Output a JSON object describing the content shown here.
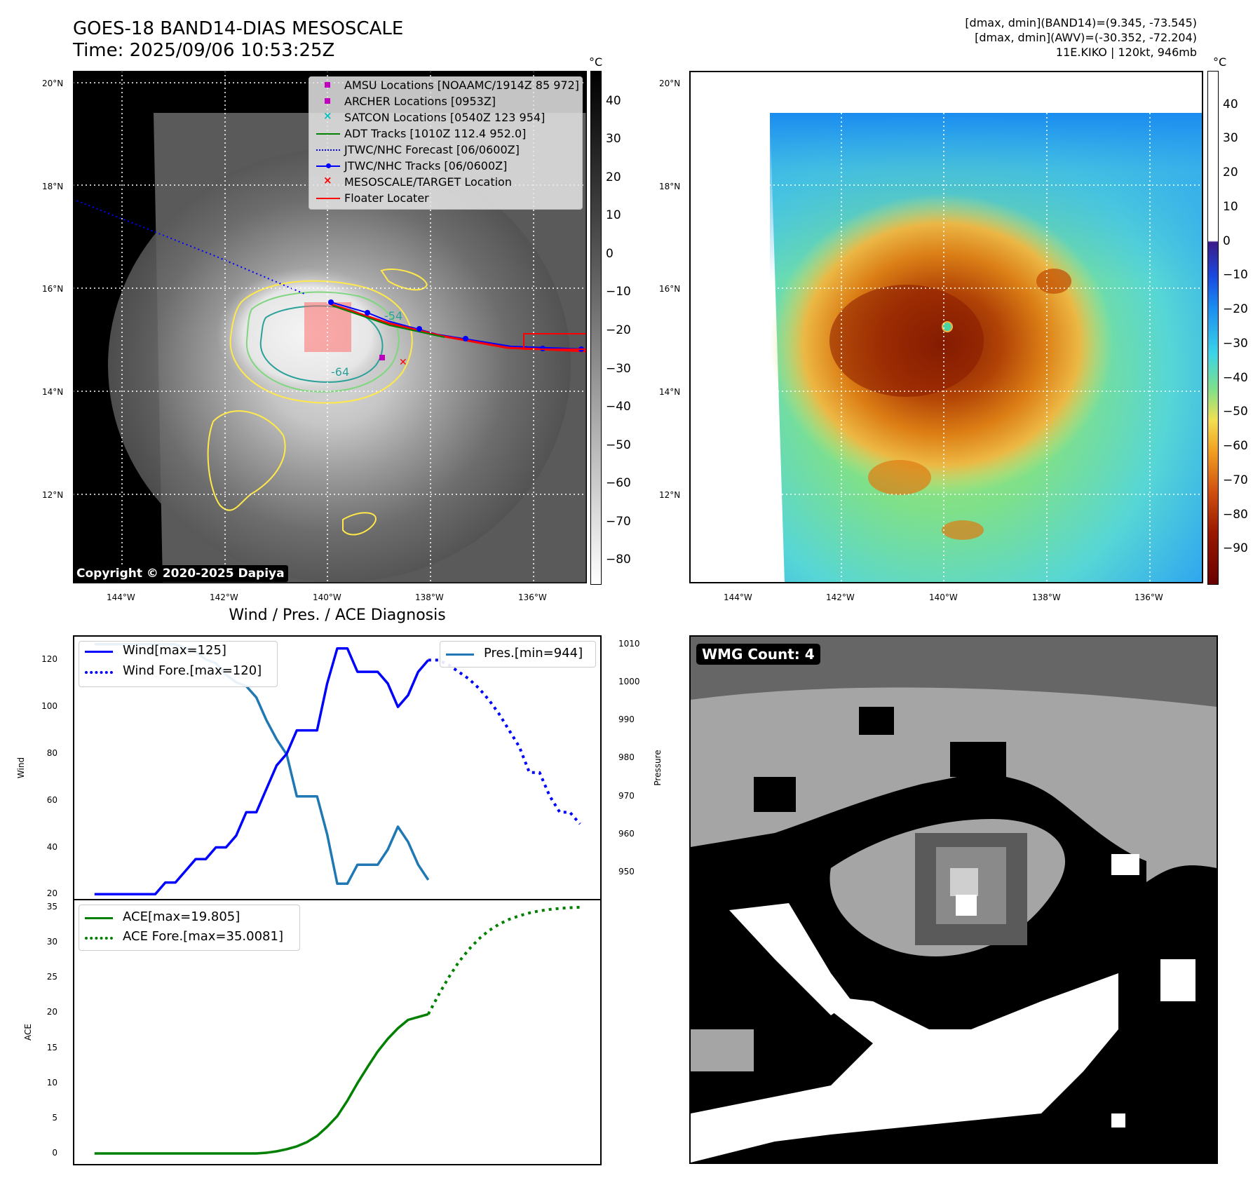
{
  "header": {
    "title_line1": "GOES-18 BAND14-DIAS MESOSCALE",
    "title_line2": "Time: 2025/09/06 10:53:25Z",
    "info_line1": "[dmax, dmin](BAND14)=(9.345, -73.545)",
    "info_line2": "[dmax, dmin](AWV)=(-30.352, -72.204)",
    "info_line3": "11E.KIKO | 120kt, 946mb"
  },
  "map_axes": {
    "lat_labels": [
      "20°N",
      "18°N",
      "16°N",
      "14°N",
      "12°N"
    ],
    "lon_labels": [
      "144°W",
      "142°W",
      "140°W",
      "138°W",
      "136°W"
    ]
  },
  "ir_panel": {
    "colorbar_unit": "°C",
    "colorbar_ticks": [
      "40",
      "30",
      "20",
      "10",
      "0",
      "−10",
      "−20",
      "−30",
      "−40",
      "−50",
      "−60",
      "−70",
      "−80"
    ],
    "contour_labels": [
      "-54",
      "-64"
    ],
    "copyright": "Copyright © 2020-2025 Dapiya",
    "legend": [
      {
        "label": "AMSU Locations [NOAAMC/1914Z 85 972]",
        "color": "#c000c0",
        "marker": "square"
      },
      {
        "label": "ARCHER Locations [0953Z]",
        "color": "#c000c0",
        "marker": "square"
      },
      {
        "label": "SATCON Locations [0540Z 123 954]",
        "color": "#00c0c0",
        "marker": "x"
      },
      {
        "label": "ADT Tracks [1010Z 112.4 952.0]",
        "color": "#008000",
        "marker": "line"
      },
      {
        "label": "JTWC/NHC Forecast [06/0600Z]",
        "color": "#0000ff",
        "marker": "dotted"
      },
      {
        "label": "JTWC/NHC Tracks [06/0600Z]",
        "color": "#0000ff",
        "marker": "line-dot"
      },
      {
        "label": "MESOSCALE/TARGET Location",
        "color": "#ff0000",
        "marker": "x"
      },
      {
        "label": "Floater Locater",
        "color": "#ff0000",
        "marker": "line"
      }
    ]
  },
  "awv_panel": {
    "colorbar_unit": "°C",
    "colorbar_ticks": [
      "40",
      "30",
      "20",
      "10",
      "0",
      "−10",
      "−20",
      "−30",
      "−40",
      "−50",
      "−60",
      "−70",
      "−80",
      "−90"
    ]
  },
  "diagnosis": {
    "title": "Wind / Pres. / ACE Diagnosis",
    "wind_ylabel": "Wind",
    "pres_ylabel": "Pressure",
    "ace_ylabel": "ACE",
    "wind_ticks": [
      "120",
      "100",
      "80",
      "60",
      "40",
      "20"
    ],
    "pres_ticks": [
      "1010",
      "1000",
      "990",
      "980",
      "970",
      "960",
      "950"
    ],
    "ace_ticks": [
      "35",
      "30",
      "25",
      "20",
      "15",
      "10",
      "5",
      "0"
    ],
    "legend_wind": "Wind[max=125]",
    "legend_wind_fore": "Wind Fore.[max=120]",
    "legend_pres": "Pres.[min=944]",
    "legend_ace": "ACE[max=19.805]",
    "legend_ace_fore": "ACE Fore.[max=35.0081]"
  },
  "wmg_panel": {
    "label": "WMG Count: 4"
  },
  "chart_data": [
    {
      "type": "line",
      "title": "Wind / Pres. / ACE Diagnosis",
      "ylabel": "Wind",
      "ylim": [
        18,
        130
      ],
      "series": [
        {
          "name": "Wind[max=125]",
          "color": "#0000ff",
          "style": "solid",
          "x": [
            0,
            1,
            2,
            3,
            4,
            5,
            6,
            7,
            8,
            9,
            10,
            11,
            12,
            13,
            14,
            15,
            16,
            17,
            18,
            19,
            20,
            21,
            22,
            23,
            24,
            25
          ],
          "values": [
            20,
            20,
            20,
            20,
            20,
            20,
            20,
            25,
            25,
            30,
            35,
            35,
            40,
            40,
            45,
            55,
            55,
            65,
            75,
            80,
            90,
            90,
            90,
            110,
            125,
            125
          ]
        },
        {
          "name": "Wind Fore.[max=120]",
          "color": "#0000ff",
          "style": "dotted",
          "x": [
            33,
            34,
            35,
            36,
            37,
            38,
            39,
            40,
            41,
            42,
            43,
            44,
            45,
            46,
            47,
            48
          ],
          "values": [
            120,
            120,
            118,
            115,
            112,
            108,
            103,
            97,
            90,
            83,
            72,
            72,
            62,
            55,
            55,
            50
          ]
        }
      ],
      "wind_observed_tail": {
        "x": [
          25,
          26,
          27,
          28,
          29,
          30,
          31,
          32,
          33
        ],
        "values": [
          125,
          115,
          115,
          115,
          110,
          100,
          105,
          115,
          120
        ]
      }
    },
    {
      "type": "line",
      "ylabel": "Pressure",
      "ylim": [
        943,
        1012
      ],
      "series": [
        {
          "name": "Pres.[min=944]",
          "color": "#1f77b4",
          "style": "solid",
          "x": [
            0,
            1,
            2,
            3,
            4,
            5,
            6,
            7,
            8,
            9,
            10,
            11,
            12,
            13,
            14,
            15,
            16,
            17,
            18,
            19,
            20,
            21,
            22,
            23,
            24,
            25,
            26,
            27,
            28,
            29,
            30,
            31,
            32,
            33
          ],
          "values": [
            1010,
            1010,
            1010,
            1010,
            1010,
            1010,
            1010,
            1010,
            1010,
            1009,
            1008,
            1006,
            1005,
            1002,
            1000,
            999,
            996,
            990,
            985,
            981,
            970,
            970,
            970,
            960,
            947,
            947,
            952,
            952,
            952,
            956,
            962,
            958,
            952,
            948
          ]
        }
      ]
    },
    {
      "type": "line",
      "ylabel": "ACE",
      "ylim": [
        -1.5,
        36
      ],
      "series": [
        {
          "name": "ACE[max=19.805]",
          "color": "#008000",
          "style": "solid",
          "x": [
            0,
            2,
            4,
            6,
            8,
            10,
            12,
            14,
            16,
            17,
            18,
            19,
            20,
            21,
            22,
            23,
            24,
            25,
            26,
            27,
            28,
            29,
            30,
            31,
            32,
            33
          ],
          "values": [
            0,
            0,
            0,
            0,
            0,
            0,
            0,
            0,
            0,
            0.1,
            0.3,
            0.6,
            1.0,
            1.6,
            2.5,
            3.8,
            5.3,
            7.5,
            10.0,
            12.3,
            14.5,
            16.3,
            17.8,
            19.0,
            19.4,
            19.805
          ]
        },
        {
          "name": "ACE Fore.[max=35.0081]",
          "color": "#008000",
          "style": "dotted",
          "x": [
            33,
            34,
            35,
            36,
            37,
            38,
            39,
            40,
            41,
            42,
            43,
            44,
            45,
            46,
            47,
            48
          ],
          "values": [
            19.805,
            22.5,
            25,
            27.2,
            29,
            30.5,
            31.7,
            32.6,
            33.3,
            33.8,
            34.2,
            34.5,
            34.7,
            34.85,
            34.95,
            35.0081
          ]
        }
      ]
    }
  ]
}
